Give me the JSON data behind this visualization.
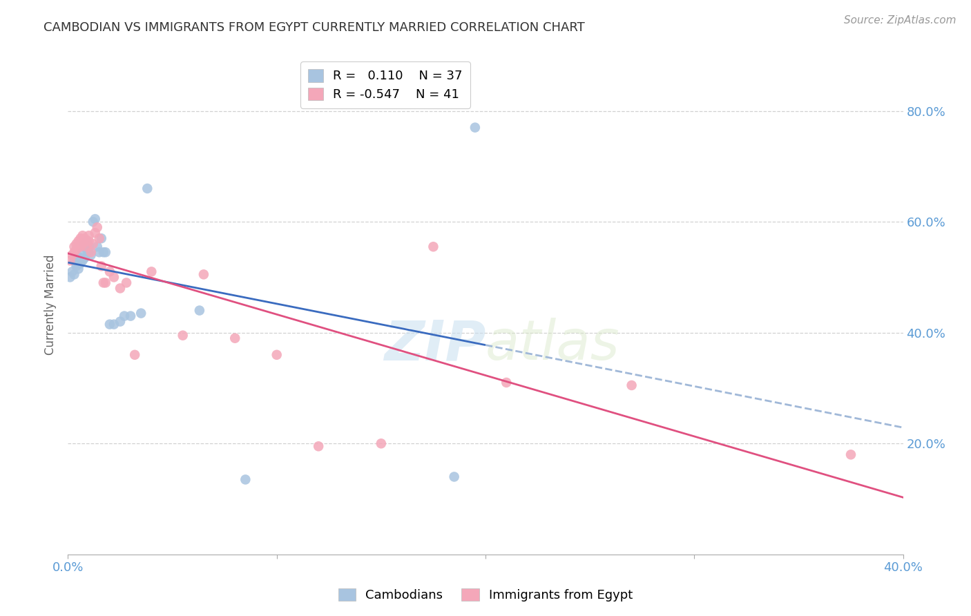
{
  "title": "CAMBODIAN VS IMMIGRANTS FROM EGYPT CURRENTLY MARRIED CORRELATION CHART",
  "source": "Source: ZipAtlas.com",
  "ylabel": "Currently Married",
  "x_min": 0.0,
  "x_max": 0.4,
  "y_min": 0.0,
  "y_max": 0.9,
  "cambodian_color": "#a8c4e0",
  "egypt_color": "#f4a7b9",
  "trendline_cambodian_color": "#3a6bbf",
  "trendline_egypt_color": "#e05080",
  "trendline_cambodian_dashed_color": "#a0b8d8",
  "background_color": "#ffffff",
  "grid_color": "#cccccc",
  "watermark_zip": "ZIP",
  "watermark_atlas": "atlas",
  "cambodian_x": [
    0.001,
    0.002,
    0.003,
    0.003,
    0.004,
    0.004,
    0.005,
    0.005,
    0.006,
    0.006,
    0.007,
    0.007,
    0.008,
    0.008,
    0.009,
    0.009,
    0.01,
    0.01,
    0.011,
    0.012,
    0.013,
    0.014,
    0.015,
    0.016,
    0.017,
    0.018,
    0.02,
    0.022,
    0.025,
    0.027,
    0.03,
    0.035,
    0.038,
    0.063,
    0.085,
    0.185,
    0.195
  ],
  "cambodian_y": [
    0.5,
    0.51,
    0.505,
    0.53,
    0.525,
    0.52,
    0.515,
    0.53,
    0.525,
    0.535,
    0.53,
    0.545,
    0.535,
    0.56,
    0.55,
    0.565,
    0.545,
    0.555,
    0.54,
    0.6,
    0.605,
    0.555,
    0.545,
    0.57,
    0.545,
    0.545,
    0.415,
    0.415,
    0.42,
    0.43,
    0.43,
    0.435,
    0.66,
    0.44,
    0.135,
    0.14,
    0.77
  ],
  "egypt_x": [
    0.001,
    0.002,
    0.003,
    0.003,
    0.004,
    0.004,
    0.005,
    0.005,
    0.006,
    0.006,
    0.007,
    0.007,
    0.008,
    0.008,
    0.009,
    0.01,
    0.01,
    0.011,
    0.012,
    0.013,
    0.014,
    0.015,
    0.016,
    0.017,
    0.018,
    0.02,
    0.022,
    0.025,
    0.028,
    0.032,
    0.04,
    0.055,
    0.065,
    0.08,
    0.1,
    0.12,
    0.15,
    0.175,
    0.21,
    0.27,
    0.375
  ],
  "egypt_y": [
    0.53,
    0.54,
    0.545,
    0.555,
    0.55,
    0.56,
    0.555,
    0.565,
    0.555,
    0.57,
    0.56,
    0.575,
    0.565,
    0.57,
    0.555,
    0.565,
    0.575,
    0.545,
    0.56,
    0.58,
    0.59,
    0.57,
    0.52,
    0.49,
    0.49,
    0.51,
    0.5,
    0.48,
    0.49,
    0.36,
    0.51,
    0.395,
    0.505,
    0.39,
    0.36,
    0.195,
    0.2,
    0.555,
    0.31,
    0.305,
    0.18
  ],
  "trendline_solid_end_x": 0.2,
  "legend_label_cambodian": "R =   0.110    N = 37",
  "legend_label_egypt": "R = -0.547    N = 41"
}
